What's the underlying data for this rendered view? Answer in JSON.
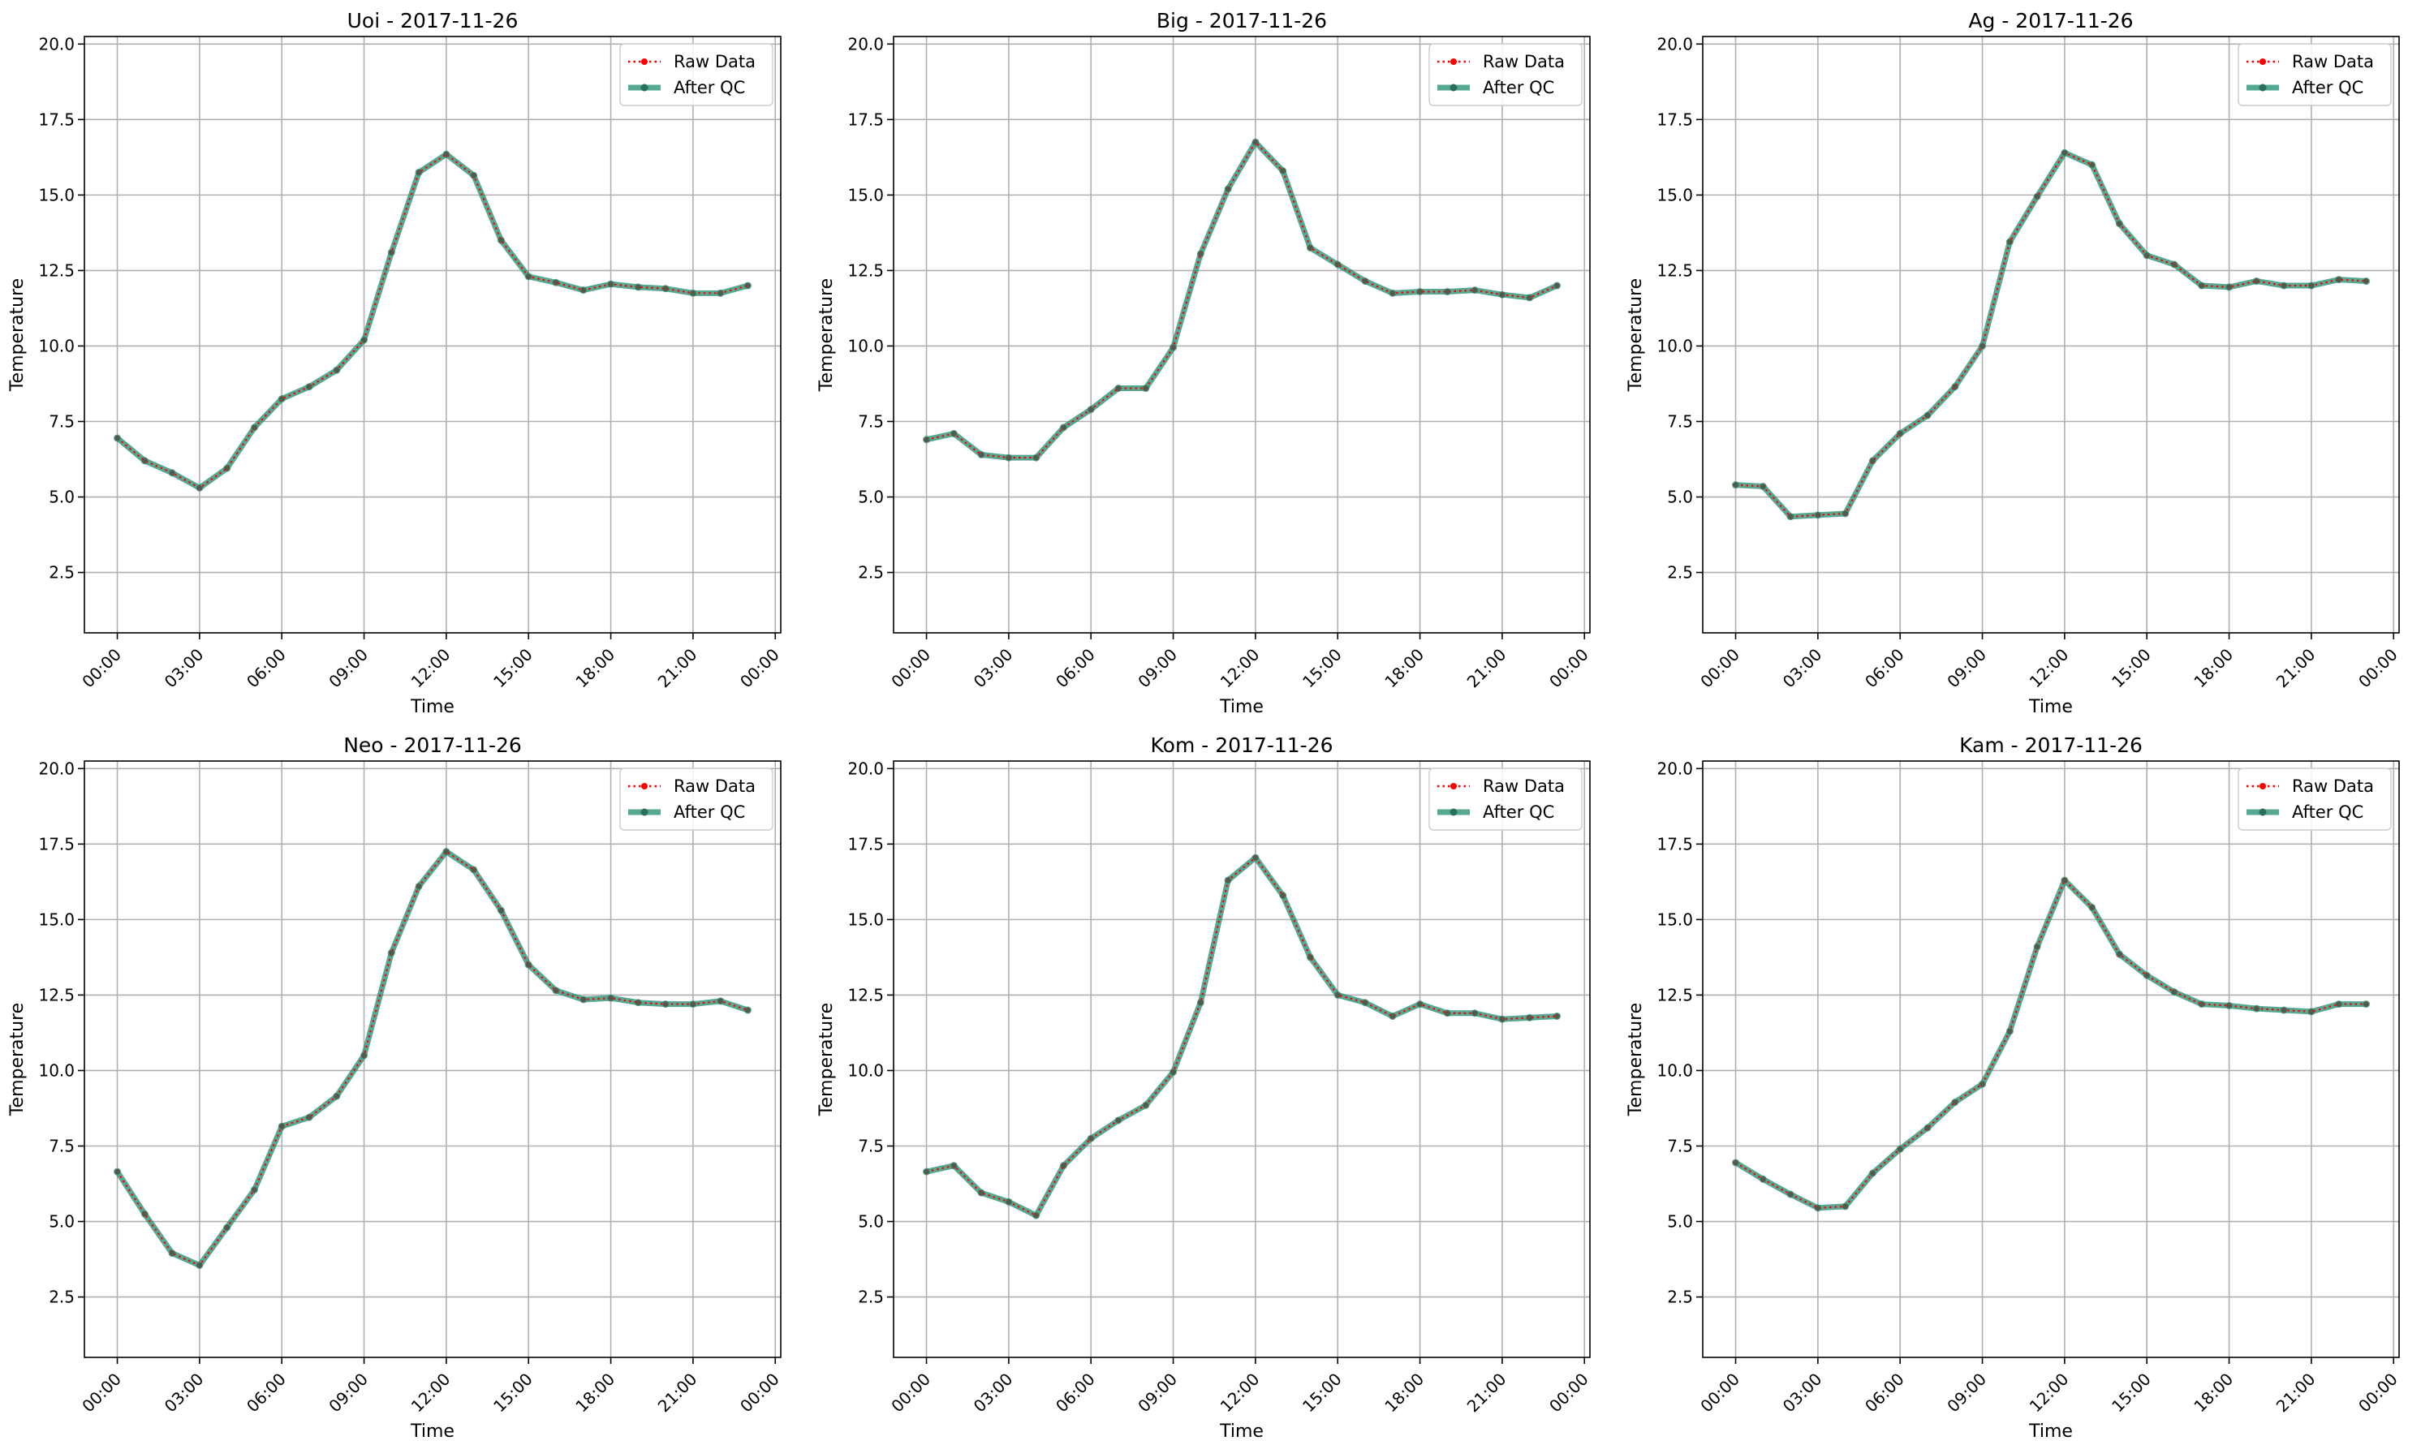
{
  "chart_data": [
    {
      "type": "line",
      "title": "Uoi - 2017-11-26",
      "xlabel": "Time",
      "ylabel": "Temperature",
      "xlim": [
        -1.2,
        24.2
      ],
      "ylim": [
        0.5,
        20.25
      ],
      "x_ticks": [
        0,
        3,
        6,
        9,
        12,
        15,
        18,
        21,
        24
      ],
      "x_tick_labels": [
        "00:00",
        "03:00",
        "06:00",
        "09:00",
        "12:00",
        "15:00",
        "18:00",
        "21:00",
        "00:00"
      ],
      "y_ticks": [
        2.5,
        5.0,
        7.5,
        10.0,
        12.5,
        15.0,
        17.5,
        20.0
      ],
      "y_tick_labels": [
        "2.5",
        "5.0",
        "7.5",
        "10.0",
        "12.5",
        "15.0",
        "17.5",
        "20.0"
      ],
      "grid": true,
      "legend_position": "top-right",
      "x": [
        0,
        1,
        2,
        3,
        4,
        5,
        6,
        7,
        8,
        9,
        10,
        11,
        12,
        13,
        14,
        15,
        16,
        17,
        18,
        19,
        20,
        21,
        22,
        23
      ],
      "series": [
        {
          "name": "Raw Data",
          "color": "#ff0000",
          "values": [
            6.95,
            6.2,
            5.8,
            5.3,
            5.95,
            7.3,
            8.25,
            8.65,
            9.2,
            10.2,
            13.1,
            15.75,
            16.35,
            15.65,
            13.5,
            12.3,
            12.1,
            11.85,
            12.05,
            11.95,
            11.9,
            11.75,
            11.75,
            12.0
          ]
        },
        {
          "name": "After QC",
          "color": "#2a9478",
          "values": [
            6.95,
            6.2,
            5.8,
            5.3,
            5.95,
            7.3,
            8.25,
            8.65,
            9.2,
            10.2,
            13.1,
            15.75,
            16.35,
            15.65,
            13.5,
            12.3,
            12.1,
            11.85,
            12.05,
            11.95,
            11.9,
            11.75,
            11.75,
            12.0
          ]
        }
      ]
    },
    {
      "type": "line",
      "title": "Big - 2017-11-26",
      "xlabel": "Time",
      "ylabel": "Temperature",
      "xlim": [
        -1.2,
        24.2
      ],
      "ylim": [
        0.5,
        20.25
      ],
      "x_ticks": [
        0,
        3,
        6,
        9,
        12,
        15,
        18,
        21,
        24
      ],
      "x_tick_labels": [
        "00:00",
        "03:00",
        "06:00",
        "09:00",
        "12:00",
        "15:00",
        "18:00",
        "21:00",
        "00:00"
      ],
      "y_ticks": [
        2.5,
        5.0,
        7.5,
        10.0,
        12.5,
        15.0,
        17.5,
        20.0
      ],
      "y_tick_labels": [
        "2.5",
        "5.0",
        "7.5",
        "10.0",
        "12.5",
        "15.0",
        "17.5",
        "20.0"
      ],
      "grid": true,
      "legend_position": "top-right",
      "x": [
        0,
        1,
        2,
        3,
        4,
        5,
        6,
        7,
        8,
        9,
        10,
        11,
        12,
        13,
        14,
        15,
        16,
        17,
        18,
        19,
        20,
        21,
        22,
        23
      ],
      "series": [
        {
          "name": "Raw Data",
          "color": "#ff0000",
          "values": [
            6.9,
            7.1,
            6.4,
            6.3,
            6.3,
            7.3,
            7.9,
            8.6,
            8.6,
            9.95,
            13.05,
            15.2,
            16.75,
            15.8,
            13.25,
            12.7,
            12.15,
            11.75,
            11.8,
            11.8,
            11.85,
            11.7,
            11.6,
            12.0
          ]
        },
        {
          "name": "After QC",
          "color": "#2a9478",
          "values": [
            6.9,
            7.1,
            6.4,
            6.3,
            6.3,
            7.3,
            7.9,
            8.6,
            8.6,
            9.95,
            13.05,
            15.2,
            16.75,
            15.8,
            13.25,
            12.7,
            12.15,
            11.75,
            11.8,
            11.8,
            11.85,
            11.7,
            11.6,
            12.0
          ]
        }
      ]
    },
    {
      "type": "line",
      "title": "Ag - 2017-11-26",
      "xlabel": "Time",
      "ylabel": "Temperature",
      "xlim": [
        -1.2,
        24.2
      ],
      "ylim": [
        0.5,
        20.25
      ],
      "x_ticks": [
        0,
        3,
        6,
        9,
        12,
        15,
        18,
        21,
        24
      ],
      "x_tick_labels": [
        "00:00",
        "03:00",
        "06:00",
        "09:00",
        "12:00",
        "15:00",
        "18:00",
        "21:00",
        "00:00"
      ],
      "y_ticks": [
        2.5,
        5.0,
        7.5,
        10.0,
        12.5,
        15.0,
        17.5,
        20.0
      ],
      "y_tick_labels": [
        "2.5",
        "5.0",
        "7.5",
        "10.0",
        "12.5",
        "15.0",
        "17.5",
        "20.0"
      ],
      "grid": true,
      "legend_position": "top-right",
      "x": [
        0,
        1,
        2,
        3,
        4,
        5,
        6,
        7,
        8,
        9,
        10,
        11,
        12,
        13,
        14,
        15,
        16,
        17,
        18,
        19,
        20,
        21,
        22,
        23
      ],
      "series": [
        {
          "name": "Raw Data",
          "color": "#ff0000",
          "values": [
            5.4,
            5.35,
            4.35,
            4.4,
            4.45,
            6.2,
            7.1,
            7.7,
            8.65,
            10.0,
            13.45,
            14.95,
            16.4,
            16.0,
            14.05,
            13.0,
            12.7,
            12.0,
            11.95,
            12.15,
            12.0,
            12.0,
            12.2,
            12.15
          ]
        },
        {
          "name": "After QC",
          "color": "#2a9478",
          "values": [
            5.4,
            5.35,
            4.35,
            4.4,
            4.45,
            6.2,
            7.1,
            7.7,
            8.65,
            10.0,
            13.45,
            14.95,
            16.4,
            16.0,
            14.05,
            13.0,
            12.7,
            12.0,
            11.95,
            12.15,
            12.0,
            12.0,
            12.2,
            12.15
          ]
        }
      ]
    },
    {
      "type": "line",
      "title": "Neo - 2017-11-26",
      "xlabel": "Time",
      "ylabel": "Temperature",
      "xlim": [
        -1.2,
        24.2
      ],
      "ylim": [
        0.5,
        20.25
      ],
      "x_ticks": [
        0,
        3,
        6,
        9,
        12,
        15,
        18,
        21,
        24
      ],
      "x_tick_labels": [
        "00:00",
        "03:00",
        "06:00",
        "09:00",
        "12:00",
        "15:00",
        "18:00",
        "21:00",
        "00:00"
      ],
      "y_ticks": [
        2.5,
        5.0,
        7.5,
        10.0,
        12.5,
        15.0,
        17.5,
        20.0
      ],
      "y_tick_labels": [
        "2.5",
        "5.0",
        "7.5",
        "10.0",
        "12.5",
        "15.0",
        "17.5",
        "20.0"
      ],
      "grid": true,
      "legend_position": "top-right",
      "x": [
        0,
        1,
        2,
        3,
        4,
        5,
        6,
        7,
        8,
        9,
        10,
        11,
        12,
        13,
        14,
        15,
        16,
        17,
        18,
        19,
        20,
        21,
        22,
        23
      ],
      "series": [
        {
          "name": "Raw Data",
          "color": "#ff0000",
          "values": [
            6.65,
            5.25,
            3.95,
            3.55,
            4.8,
            6.05,
            8.15,
            8.45,
            9.15,
            10.5,
            13.9,
            16.1,
            17.25,
            16.65,
            15.3,
            13.5,
            12.65,
            12.35,
            12.4,
            12.25,
            12.2,
            12.2,
            12.3,
            12.0
          ]
        },
        {
          "name": "After QC",
          "color": "#2a9478",
          "values": [
            6.65,
            5.25,
            3.95,
            3.55,
            4.8,
            6.05,
            8.15,
            8.45,
            9.15,
            10.5,
            13.9,
            16.1,
            17.25,
            16.65,
            15.3,
            13.5,
            12.65,
            12.35,
            12.4,
            12.25,
            12.2,
            12.2,
            12.3,
            12.0
          ]
        }
      ]
    },
    {
      "type": "line",
      "title": "Kom - 2017-11-26",
      "xlabel": "Time",
      "ylabel": "Temperature",
      "xlim": [
        -1.2,
        24.2
      ],
      "ylim": [
        0.5,
        20.25
      ],
      "x_ticks": [
        0,
        3,
        6,
        9,
        12,
        15,
        18,
        21,
        24
      ],
      "x_tick_labels": [
        "00:00",
        "03:00",
        "06:00",
        "09:00",
        "12:00",
        "15:00",
        "18:00",
        "21:00",
        "00:00"
      ],
      "y_ticks": [
        2.5,
        5.0,
        7.5,
        10.0,
        12.5,
        15.0,
        17.5,
        20.0
      ],
      "y_tick_labels": [
        "2.5",
        "5.0",
        "7.5",
        "10.0",
        "12.5",
        "15.0",
        "17.5",
        "20.0"
      ],
      "grid": true,
      "legend_position": "top-right",
      "x": [
        0,
        1,
        2,
        3,
        4,
        5,
        6,
        7,
        8,
        9,
        10,
        11,
        12,
        13,
        14,
        15,
        16,
        17,
        18,
        19,
        20,
        21,
        22,
        23
      ],
      "series": [
        {
          "name": "Raw Data",
          "color": "#ff0000",
          "values": [
            6.65,
            6.85,
            5.95,
            5.65,
            5.2,
            6.85,
            7.75,
            8.35,
            8.85,
            9.95,
            12.25,
            16.3,
            17.05,
            15.8,
            13.75,
            12.5,
            12.25,
            11.8,
            12.2,
            11.9,
            11.9,
            11.7,
            11.75,
            11.8
          ]
        },
        {
          "name": "After QC",
          "color": "#2a9478",
          "values": [
            6.65,
            6.85,
            5.95,
            5.65,
            5.2,
            6.85,
            7.75,
            8.35,
            8.85,
            9.95,
            12.25,
            16.3,
            17.05,
            15.8,
            13.75,
            12.5,
            12.25,
            11.8,
            12.2,
            11.9,
            11.9,
            11.7,
            11.75,
            11.8
          ]
        }
      ]
    },
    {
      "type": "line",
      "title": "Kam - 2017-11-26",
      "xlabel": "Time",
      "ylabel": "Temperature",
      "xlim": [
        -1.2,
        24.2
      ],
      "ylim": [
        0.5,
        20.25
      ],
      "x_ticks": [
        0,
        3,
        6,
        9,
        12,
        15,
        18,
        21,
        24
      ],
      "x_tick_labels": [
        "00:00",
        "03:00",
        "06:00",
        "09:00",
        "12:00",
        "15:00",
        "18:00",
        "21:00",
        "00:00"
      ],
      "y_ticks": [
        2.5,
        5.0,
        7.5,
        10.0,
        12.5,
        15.0,
        17.5,
        20.0
      ],
      "y_tick_labels": [
        "2.5",
        "5.0",
        "7.5",
        "10.0",
        "12.5",
        "15.0",
        "17.5",
        "20.0"
      ],
      "grid": true,
      "legend_position": "top-right",
      "x": [
        0,
        1,
        2,
        3,
        4,
        5,
        6,
        7,
        8,
        9,
        10,
        11,
        12,
        13,
        14,
        15,
        16,
        17,
        18,
        19,
        20,
        21,
        22,
        23
      ],
      "series": [
        {
          "name": "Raw Data",
          "color": "#ff0000",
          "values": [
            6.95,
            6.4,
            5.9,
            5.45,
            5.5,
            6.6,
            7.4,
            8.1,
            8.95,
            9.55,
            11.3,
            14.1,
            16.3,
            15.4,
            13.85,
            13.15,
            12.6,
            12.2,
            12.15,
            12.05,
            12.0,
            11.95,
            12.2,
            12.2
          ]
        },
        {
          "name": "After QC",
          "color": "#2a9478",
          "values": [
            6.95,
            6.4,
            5.9,
            5.45,
            5.5,
            6.6,
            7.4,
            8.1,
            8.95,
            9.55,
            11.3,
            14.1,
            16.3,
            15.4,
            13.85,
            13.15,
            12.6,
            12.2,
            12.15,
            12.05,
            12.0,
            11.95,
            12.2,
            12.2
          ]
        }
      ]
    }
  ]
}
